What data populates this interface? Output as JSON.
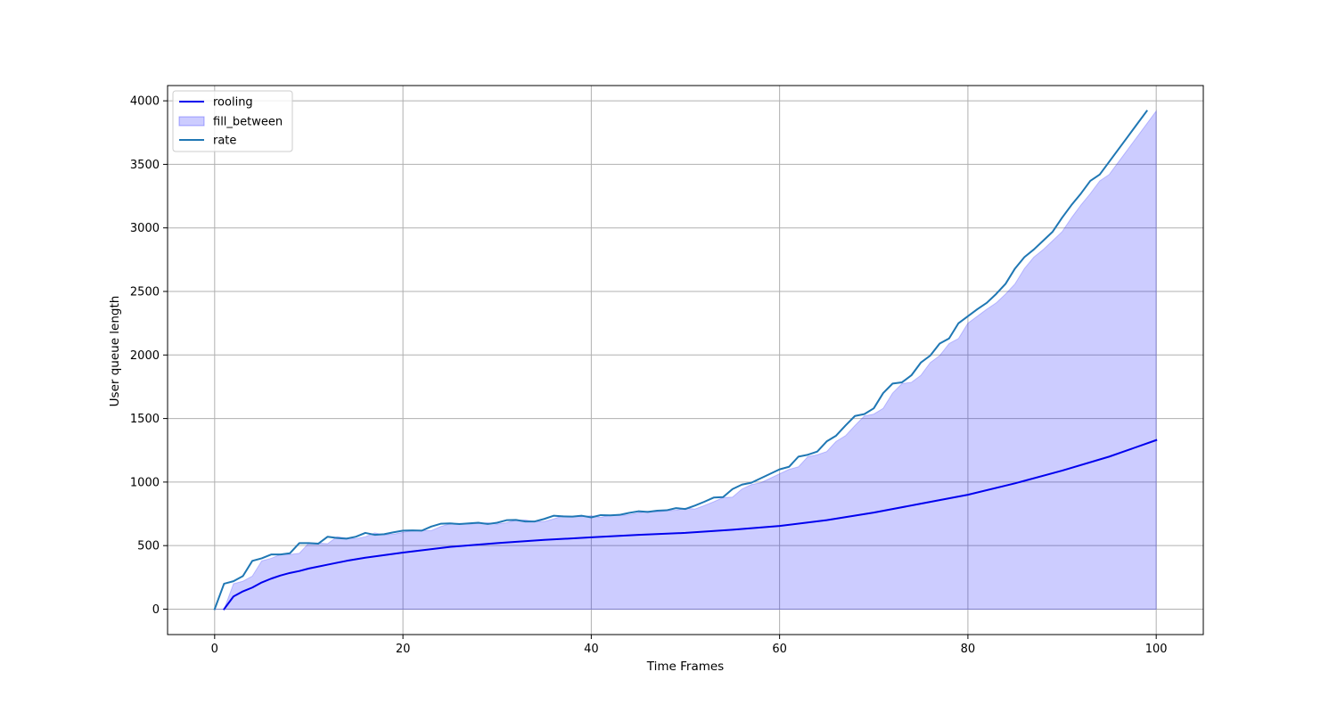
{
  "chart_data": {
    "type": "line",
    "title": "",
    "xlabel": "Time Frames",
    "ylabel": "User queue length",
    "xlim": [
      -5,
      105
    ],
    "ylim": [
      -200,
      4120
    ],
    "xticks": [
      0,
      20,
      40,
      60,
      80,
      100
    ],
    "yticks": [
      0,
      500,
      1000,
      1500,
      2000,
      2500,
      3000,
      3500,
      4000
    ],
    "xtick_labels": [
      "0",
      "20",
      "40",
      "60",
      "80",
      "100"
    ],
    "ytick_labels": [
      "0",
      "500",
      "1000",
      "1500",
      "2000",
      "2500",
      "3000",
      "3500",
      "4000"
    ],
    "grid": true,
    "legend_position": "top-left",
    "series": [
      {
        "name": "rooling",
        "kind": "line",
        "color": "#0000ee",
        "x": [
          1,
          2,
          3,
          4,
          5,
          6,
          7,
          8,
          9,
          10,
          12,
          14,
          16,
          18,
          20,
          25,
          30,
          35,
          40,
          45,
          50,
          55,
          60,
          65,
          70,
          75,
          80,
          85,
          90,
          95,
          100
        ],
        "y": [
          0,
          100,
          140,
          170,
          210,
          240,
          265,
          285,
          300,
          320,
          350,
          380,
          405,
          425,
          445,
          490,
          520,
          545,
          565,
          585,
          600,
          625,
          655,
          700,
          760,
          830,
          900,
          990,
          1090,
          1200,
          1330
        ]
      },
      {
        "name": "fill_between",
        "kind": "area",
        "color": "#0000ff",
        "opacity": 0.2,
        "x": [
          0,
          1,
          2,
          3,
          4,
          5,
          6,
          7,
          8,
          9,
          10,
          11,
          12,
          13,
          14,
          15,
          16,
          17,
          18,
          19,
          20,
          21,
          22,
          23,
          24,
          25,
          26,
          27,
          28,
          29,
          30,
          31,
          32,
          33,
          34,
          35,
          36,
          37,
          38,
          39,
          40,
          41,
          42,
          43,
          44,
          45,
          46,
          47,
          48,
          49,
          50,
          51,
          52,
          53,
          54,
          55,
          56,
          57,
          58,
          59,
          60,
          61,
          62,
          63,
          64,
          65,
          66,
          67,
          68,
          69,
          70,
          71,
          72,
          73,
          74,
          75,
          76,
          77,
          78,
          79,
          80,
          81,
          82,
          83,
          84,
          85,
          86,
          87,
          88,
          89,
          90,
          91,
          92,
          93,
          94,
          95,
          96,
          97,
          98,
          99,
          100
        ],
        "y": [
          0,
          0,
          200,
          220,
          260,
          380,
          400,
          430,
          430,
          440,
          520,
          520,
          515,
          570,
          560,
          555,
          570,
          600,
          585,
          590,
          605,
          618,
          620,
          618,
          650,
          672,
          675,
          670,
          675,
          680,
          670,
          680,
          700,
          702,
          690,
          690,
          710,
          735,
          730,
          728,
          735,
          722,
          740,
          738,
          742,
          757,
          770,
          765,
          775,
          778,
          795,
          788,
          815,
          845,
          878,
          882,
          945,
          980,
          995,
          1030,
          1065,
          1100,
          1120,
          1200,
          1215,
          1240,
          1320,
          1365,
          1445,
          1520,
          1535,
          1580,
          1700,
          1775,
          1785,
          1840,
          1940,
          1995,
          2090,
          2130,
          2250,
          2305,
          2360,
          2410,
          2480,
          2560,
          2680,
          2770,
          2830,
          2900,
          2970,
          3080,
          3180,
          3270,
          3370,
          3420,
          3520,
          3620,
          3720,
          3820,
          3920
        ]
      },
      {
        "name": "rate",
        "kind": "line",
        "color": "#1f77b4",
        "x": [
          0,
          1,
          2,
          3,
          4,
          5,
          6,
          7,
          8,
          9,
          10,
          11,
          12,
          13,
          14,
          15,
          16,
          17,
          18,
          19,
          20,
          21,
          22,
          23,
          24,
          25,
          26,
          27,
          28,
          29,
          30,
          31,
          32,
          33,
          34,
          35,
          36,
          37,
          38,
          39,
          40,
          41,
          42,
          43,
          44,
          45,
          46,
          47,
          48,
          49,
          50,
          51,
          52,
          53,
          54,
          55,
          56,
          57,
          58,
          59,
          60,
          61,
          62,
          63,
          64,
          65,
          66,
          67,
          68,
          69,
          70,
          71,
          72,
          73,
          74,
          75,
          76,
          77,
          78,
          79,
          80,
          81,
          82,
          83,
          84,
          85,
          86,
          87,
          88,
          89,
          90,
          91,
          92,
          93,
          94,
          95,
          96,
          97,
          98,
          99
        ],
        "y": [
          0,
          200,
          220,
          260,
          380,
          400,
          430,
          430,
          440,
          520,
          520,
          515,
          570,
          560,
          555,
          570,
          600,
          585,
          590,
          605,
          618,
          620,
          618,
          650,
          672,
          675,
          670,
          675,
          680,
          670,
          680,
          700,
          702,
          690,
          690,
          710,
          735,
          730,
          728,
          735,
          722,
          740,
          738,
          742,
          757,
          770,
          765,
          775,
          778,
          795,
          788,
          815,
          845,
          878,
          882,
          945,
          980,
          995,
          1030,
          1065,
          1100,
          1120,
          1200,
          1215,
          1240,
          1320,
          1365,
          1445,
          1520,
          1535,
          1580,
          1700,
          1775,
          1785,
          1840,
          1940,
          1995,
          2090,
          2130,
          2250,
          2305,
          2360,
          2410,
          2480,
          2560,
          2680,
          2770,
          2830,
          2900,
          2970,
          3080,
          3180,
          3270,
          3370,
          3420,
          3520,
          3620,
          3720,
          3820,
          3920
        ]
      }
    ]
  }
}
